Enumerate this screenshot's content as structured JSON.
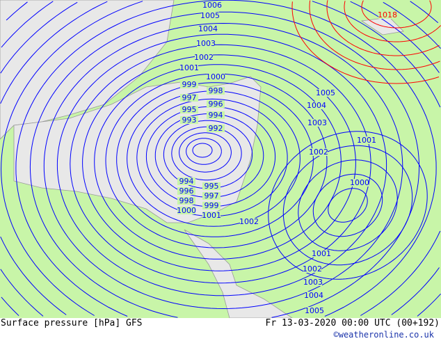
{
  "map": {
    "colors": {
      "land": "#c8f5a8",
      "sea": "#e8e8e8",
      "isobar_low": "#0000ff",
      "isobar_high": "#ff0000",
      "isobar_ref": "#000000",
      "border": "#999999"
    },
    "low_center_labels": [
      "1006",
      "1005",
      "1004",
      "1003",
      "1002",
      "1001",
      "1000",
      "999",
      "998",
      "997",
      "996",
      "995",
      "994",
      "993",
      "992"
    ],
    "low_south_labels": [
      "994",
      "995",
      "996",
      "997",
      "998",
      "999",
      "1000",
      "1001"
    ],
    "south_label": "1002",
    "east_labels": [
      "1005",
      "1004",
      "1003",
      "1002",
      "1001",
      "1000"
    ],
    "bottom_labels": [
      "1001",
      "1002",
      "1003",
      "1004",
      "1005"
    ],
    "high_label": "1018"
  },
  "footer": {
    "title": "Surface pressure [hPa] GFS",
    "time": "Fr 13-03-2020 00:00 UTC (00+192)",
    "credit": "©weatheronline.co.uk"
  }
}
